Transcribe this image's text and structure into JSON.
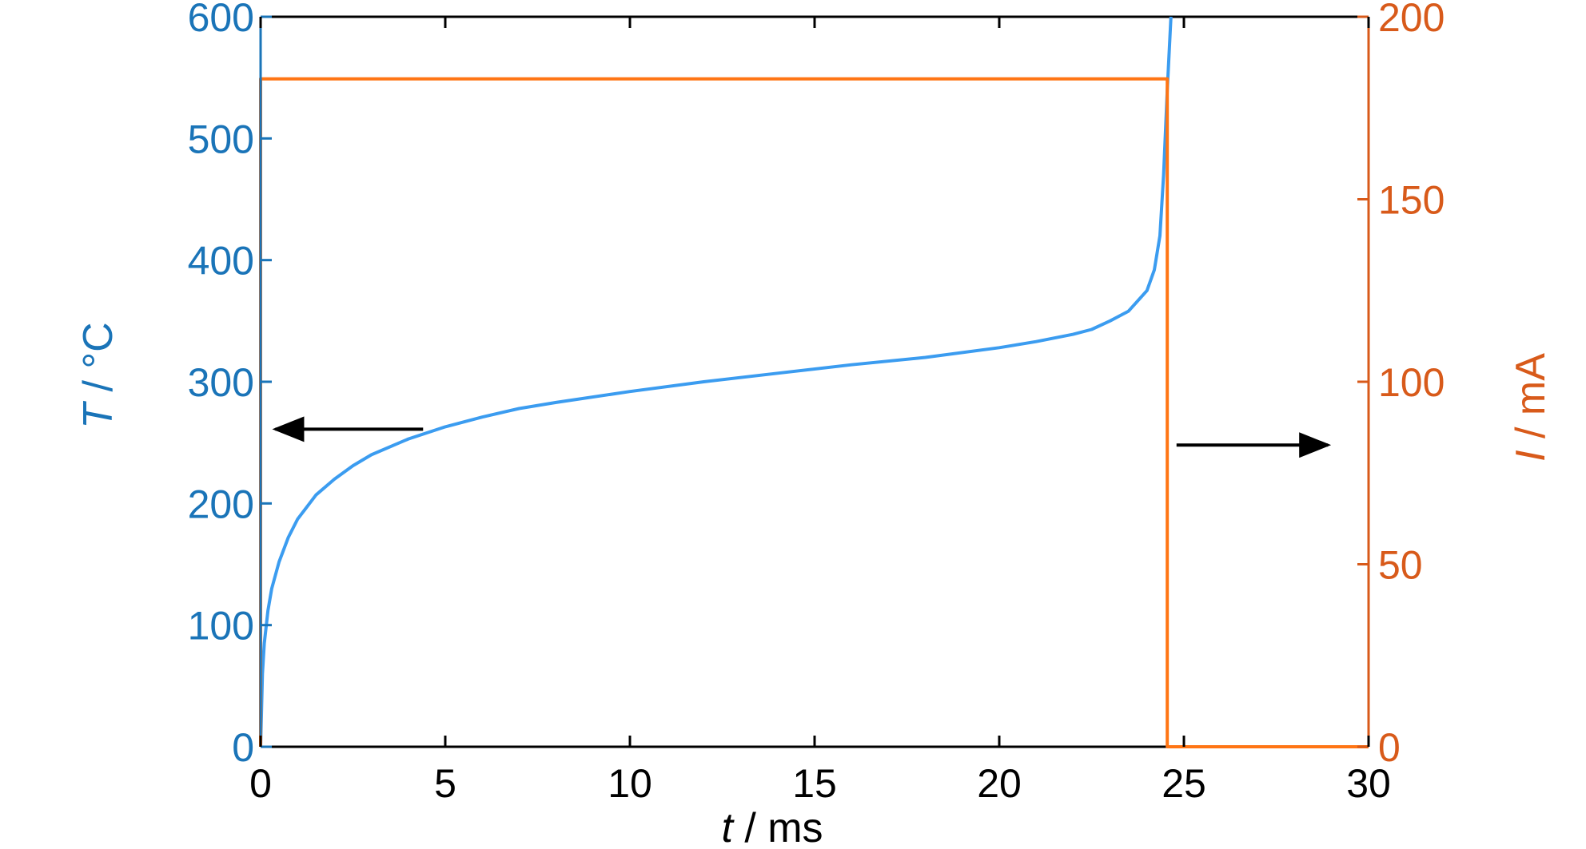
{
  "colors": {
    "left_axis": "#1a74b8",
    "temperature_line": "#3b9cf0",
    "right_axis": "#d85a1a",
    "current_line": "#ff7514",
    "frame": "#000000",
    "arrow": "#000000"
  },
  "chart_data": {
    "type": "line",
    "title": "",
    "x_axis": {
      "symbol": "t",
      "unit": " / ms",
      "lim": [
        0,
        30
      ],
      "ticks": [
        "0",
        "5",
        "10",
        "15",
        "20",
        "25",
        "30"
      ]
    },
    "y_left_axis": {
      "symbol": "T",
      "unit": " / °C",
      "lim": [
        0,
        600
      ],
      "ticks": [
        "0",
        "100",
        "200",
        "300",
        "400",
        "500",
        "600"
      ]
    },
    "y_right_axis": {
      "symbol": "I",
      "unit": " / mA",
      "lim": [
        0,
        200
      ],
      "ticks": [
        "0",
        "50",
        "100",
        "150",
        "200"
      ]
    },
    "grid": false,
    "legend": "none",
    "series": [
      {
        "axis": "left",
        "x": [
          0,
          0.05,
          0.1,
          0.2,
          0.3,
          0.5,
          0.75,
          1,
          1.5,
          2,
          2.5,
          3,
          4,
          5,
          6,
          7,
          8,
          10,
          12,
          14,
          16,
          18,
          20,
          21,
          22,
          22.5,
          23,
          23.5,
          24,
          24.2,
          24.35,
          24.45,
          24.55,
          24.65
        ],
        "y": [
          0,
          60,
          85,
          112,
          130,
          152,
          172,
          187,
          207,
          220,
          231,
          240,
          253,
          263,
          271,
          278,
          283,
          292,
          300,
          307,
          314,
          320,
          328,
          333,
          339,
          343,
          350,
          358,
          375,
          392,
          420,
          470,
          540,
          600
        ]
      },
      {
        "axis": "right",
        "x": [
          0,
          0,
          24.55,
          24.55,
          30
        ],
        "y": [
          0,
          183,
          183,
          0,
          0
        ]
      }
    ],
    "annotations": [
      {
        "type": "arrow",
        "from": [
          4.4,
          261
        ],
        "to": [
          0.4,
          261
        ]
      },
      {
        "type": "arrow",
        "from": [
          24.8,
          248
        ],
        "to": [
          28.9,
          248
        ]
      }
    ]
  }
}
